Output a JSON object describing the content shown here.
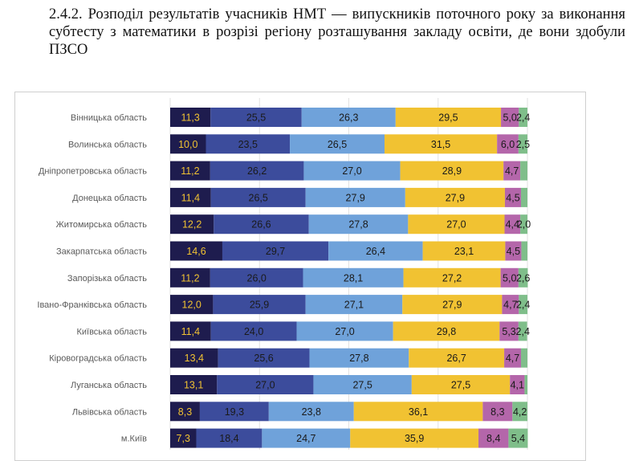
{
  "heading": "2.4.2. Розподіл результатів учасників НМТ — випускників поточного року за виконання субтесту з математики в розрізі регіону розташування закладу освіти, де вони здобули ПЗСО",
  "chart_data": {
    "type": "bar",
    "orientation": "horizontal",
    "stacked": true,
    "normalized_percent": true,
    "xlim": [
      0,
      100
    ],
    "grid": "vertical",
    "colors": [
      "#1e1c4e",
      "#3c4c9c",
      "#6fa2da",
      "#f1c232",
      "#b466aa",
      "#7fbe8a"
    ],
    "label_colors": [
      "#f1c232",
      "#1a1a1a",
      "#1a1a1a",
      "#1a1a1a",
      "#1a1a1a",
      "#1a1a1a"
    ],
    "categories": [
      "Вінницька область",
      "Волинська область",
      "Дніпропетровська область",
      "Донецька область",
      "Житомирська область",
      "Закарпатська область",
      "Запорізька область",
      "Івано-Франківська область",
      "Київська область",
      "Кіровоградська область",
      "Луганська область",
      "Львівська область",
      "м.Київ"
    ],
    "series": [
      {
        "values": [
          11.3,
          10.0,
          11.2,
          11.4,
          12.2,
          14.6,
          11.2,
          12.0,
          11.4,
          13.4,
          13.1,
          8.3,
          7.3
        ],
        "labels": [
          "11,3",
          "10,0",
          "11,2",
          "11,4",
          "12,2",
          "14,6",
          "11,2",
          "12,0",
          "11,4",
          "13,4",
          "13,1",
          "8,3",
          "7,3"
        ]
      },
      {
        "values": [
          25.5,
          23.5,
          26.2,
          26.5,
          26.6,
          29.7,
          26.0,
          25.9,
          24.0,
          25.6,
          27.0,
          19.3,
          18.4
        ],
        "labels": [
          "25,5",
          "23,5",
          "26,2",
          "26,5",
          "26,6",
          "29,7",
          "26,0",
          "25,9",
          "24,0",
          "25,6",
          "27,0",
          "19,3",
          "18,4"
        ]
      },
      {
        "values": [
          26.3,
          26.5,
          27.0,
          27.9,
          27.8,
          26.4,
          28.1,
          27.1,
          27.0,
          27.8,
          27.5,
          23.8,
          24.7
        ],
        "labels": [
          "26,3",
          "26,5",
          "27,0",
          "27,9",
          "27,8",
          "26,4",
          "28,1",
          "27,1",
          "27,0",
          "27,8",
          "27,5",
          "23,8",
          "24,7"
        ]
      },
      {
        "values": [
          29.5,
          31.5,
          28.9,
          27.9,
          27.0,
          23.1,
          27.2,
          27.9,
          29.8,
          26.7,
          27.5,
          36.1,
          35.9
        ],
        "labels": [
          "29,5",
          "31,5",
          "28,9",
          "27,9",
          "27,0",
          "23,1",
          "27,2",
          "27,9",
          "29,8",
          "26,7",
          "27,5",
          "36,1",
          "35,9"
        ]
      },
      {
        "values": [
          5.0,
          6.0,
          4.7,
          4.5,
          4.4,
          4.5,
          5.0,
          4.7,
          5.3,
          4.7,
          4.1,
          8.3,
          8.4
        ],
        "labels": [
          "5,0",
          "6,0",
          "4,7",
          "4,5",
          "4,4",
          "4,5",
          "5,0",
          "4,7",
          "5,3",
          "4,7",
          "4,1",
          "8,3",
          "8,4"
        ]
      },
      {
        "values": [
          2.4,
          2.5,
          2.0,
          1.8,
          2.0,
          1.7,
          2.6,
          2.4,
          2.4,
          1.8,
          0.8,
          4.2,
          5.4
        ],
        "labels": [
          "2,4",
          "2,5",
          "",
          "",
          "2,0",
          "",
          "2,6",
          "2,4",
          "2,4",
          "",
          "",
          "4,2",
          "5,4"
        ]
      }
    ]
  }
}
